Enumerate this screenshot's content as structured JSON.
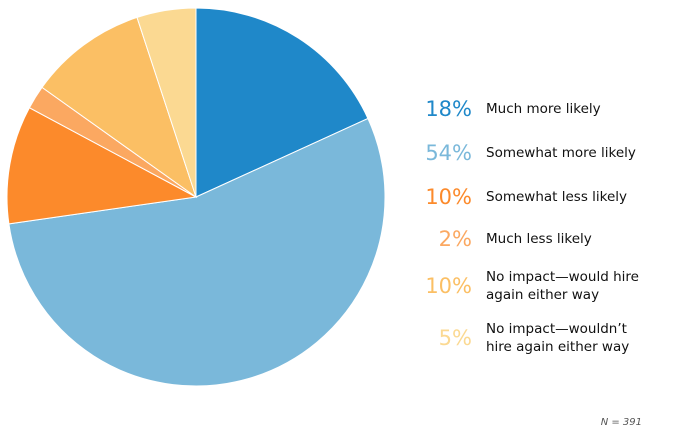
{
  "chart_data": {
    "type": "pie",
    "title": "",
    "legend_position": "right",
    "slices": [
      {
        "name": "Much more likely",
        "label": "18%",
        "value": 18,
        "color": "#1f88c9"
      },
      {
        "name": "Somewhat more likely",
        "label": "54%",
        "value": 54,
        "color": "#7ab8da"
      },
      {
        "name": "Somewhat less likely",
        "label": "10%",
        "value": 10,
        "color": "#fc8a2b"
      },
      {
        "name": "Much less likely",
        "label": "2%",
        "value": 2,
        "color": "#fba861"
      },
      {
        "name": "No impact—would hire again either way",
        "label": "10%",
        "value": 10,
        "color": "#fbbf64",
        "lines": [
          "No impact—would hire",
          "again either way"
        ]
      },
      {
        "name": "No impact—wouldn’t hire again either way",
        "label": "5%",
        "value": 5,
        "color": "#fbd992",
        "lines": [
          "No impact—wouldn’t",
          "hire again either way"
        ]
      }
    ]
  },
  "note": "N = 391"
}
